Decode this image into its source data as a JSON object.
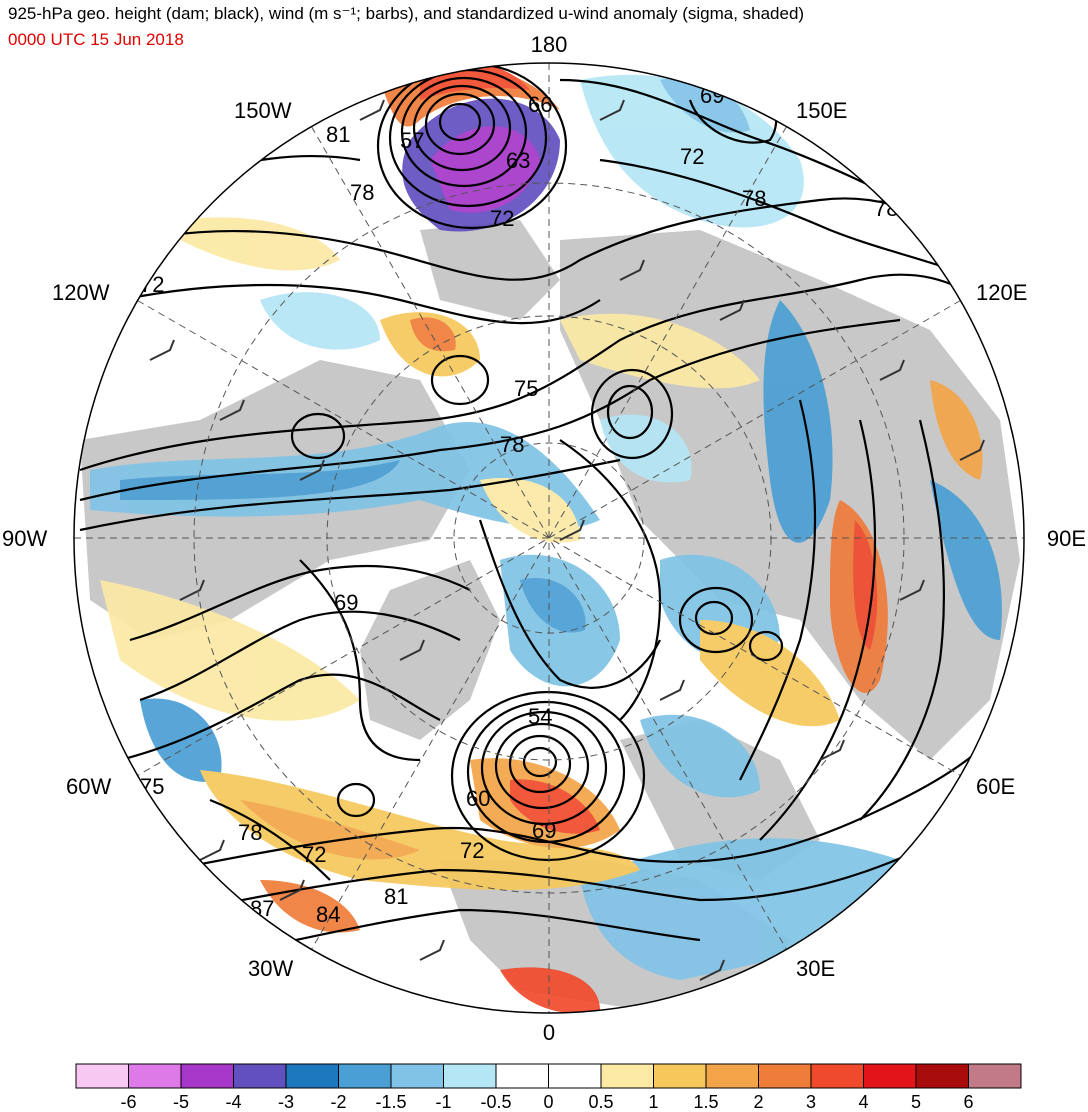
{
  "title": "925-hPa geo. height (dam; black), wind (m s⁻¹; barbs), and standardized u-wind anomaly (sigma, shaded)",
  "subtitle": "0000 UTC 15 Jun 2018",
  "longitude_labels": {
    "top": "180",
    "bottom": "0",
    "left": "90W",
    "right": "90E",
    "upper_left_1": "150W",
    "upper_left_2": "120W",
    "lower_left_1": "60W",
    "lower_left_2": "30W",
    "upper_right_1": "150E",
    "upper_right_2": "120E",
    "lower_right_1": "60E",
    "lower_right_2": "30E"
  },
  "height_contour_labels": [
    "66",
    "69",
    "57",
    "63",
    "81",
    "78",
    "72",
    "72",
    "78",
    "72",
    "78",
    "75",
    "78",
    "69",
    "54",
    "60",
    "69",
    "72",
    "75",
    "78",
    "72",
    "87",
    "84",
    "81"
  ],
  "colorbar": {
    "labels": [
      "-6",
      "-5",
      "-4",
      "-3",
      "-2",
      "-1.5",
      "-1",
      "-0.5",
      "0",
      "0.5",
      "1",
      "1.5",
      "2",
      "3",
      "4",
      "5",
      "6"
    ],
    "colors": [
      "#f7c8f2",
      "#dd7ae8",
      "#a637c9",
      "#6250bf",
      "#1e78c0",
      "#4a9fd4",
      "#80c3e6",
      "#b5e6f5",
      "#ffffff",
      "#ffffff",
      "#fbe9a4",
      "#f6c85c",
      "#f4a448",
      "#f07c3a",
      "#f04a2c",
      "#e4151a",
      "#a80c0c",
      "#c27a88"
    ]
  },
  "colors": {
    "land": "#c8c8c8",
    "contour": "#000000",
    "subtitle": "#e00000"
  }
}
